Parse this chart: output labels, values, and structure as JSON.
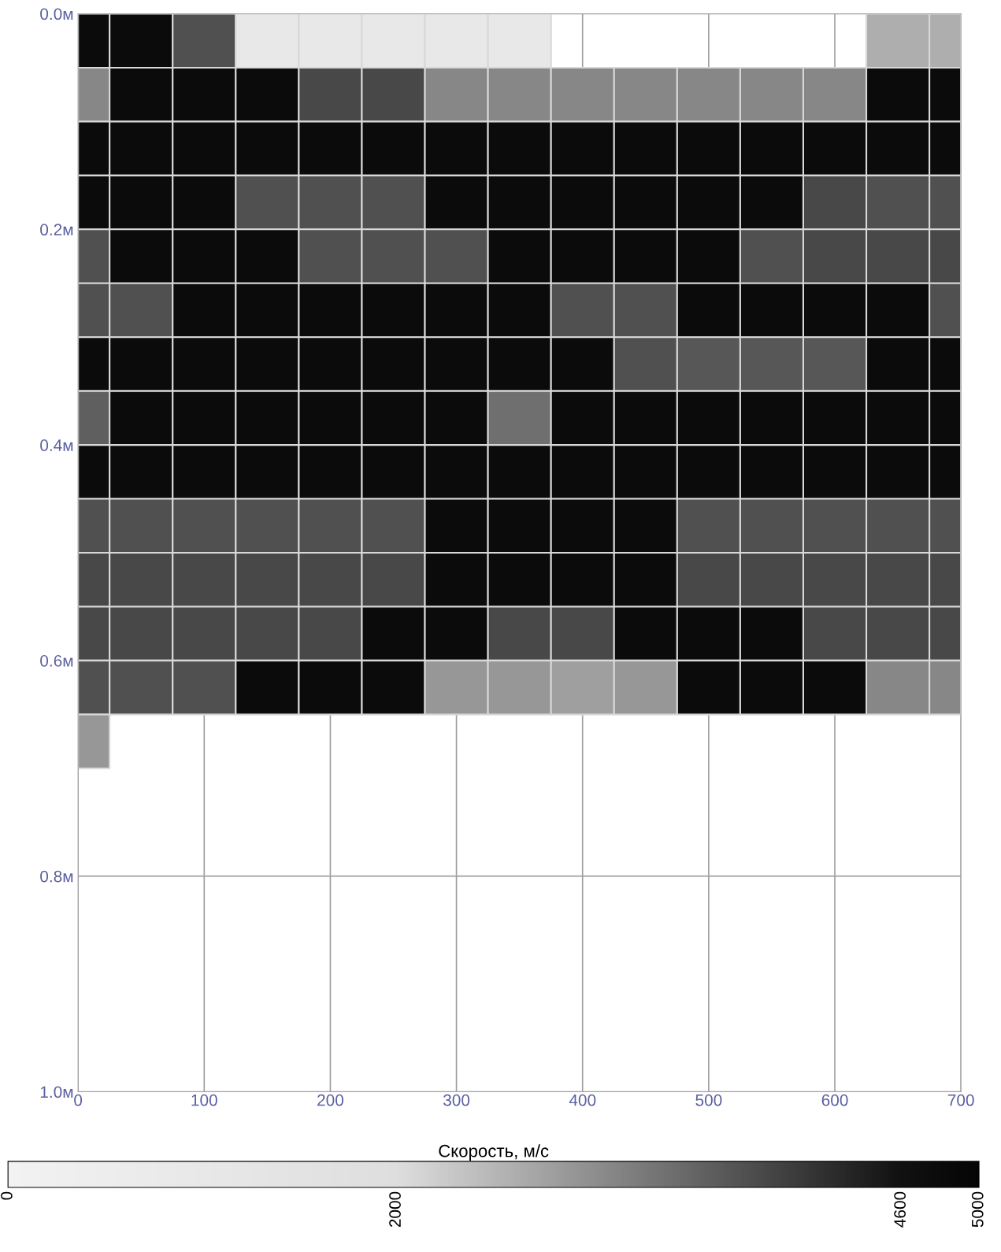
{
  "chart_data": {
    "type": "heatmap",
    "clabel": "Скорость, м/с",
    "x": [
      12.5,
      50,
      100,
      150,
      200,
      250,
      300,
      350,
      400,
      450,
      500,
      550,
      600,
      650,
      687.5
    ],
    "y": [
      0.025,
      0.075,
      0.125,
      0.175,
      0.225,
      0.275,
      0.325,
      0.375,
      0.425,
      0.475,
      0.525,
      0.575,
      0.625,
      0.675
    ],
    "cells": [
      [
        4800,
        4800,
        3800,
        1000,
        1000,
        1000,
        1000,
        1000,
        null,
        null,
        null,
        null,
        null,
        2600,
        2600
      ],
      [
        3100,
        4800,
        4800,
        4800,
        3900,
        3900,
        3100,
        3100,
        3100,
        3100,
        3100,
        3100,
        3100,
        4800,
        4800
      ],
      [
        4800,
        4800,
        4800,
        4800,
        4800,
        4800,
        4800,
        4800,
        4800,
        4800,
        4800,
        4800,
        4800,
        4800,
        4800
      ],
      [
        4800,
        4800,
        4800,
        3800,
        3800,
        3800,
        4800,
        4800,
        4800,
        4800,
        4800,
        4800,
        3900,
        3800,
        3800
      ],
      [
        3800,
        4800,
        4800,
        4800,
        3800,
        3800,
        3800,
        4800,
        4800,
        4800,
        4800,
        3800,
        3900,
        3900,
        3900
      ],
      [
        3800,
        3800,
        4800,
        4800,
        4800,
        4800,
        4800,
        4800,
        3800,
        3800,
        4800,
        4800,
        4800,
        4800,
        3800
      ],
      [
        4800,
        4800,
        4800,
        4800,
        4800,
        4800,
        4800,
        4800,
        4800,
        3800,
        3700,
        3700,
        3700,
        4800,
        4800
      ],
      [
        3600,
        4800,
        4800,
        4800,
        4800,
        4800,
        4800,
        3400,
        4800,
        4800,
        4800,
        4800,
        4800,
        4800,
        4800
      ],
      [
        4800,
        4800,
        4800,
        4800,
        4800,
        4800,
        4800,
        4800,
        4800,
        4800,
        4800,
        4800,
        4800,
        4800,
        4800
      ],
      [
        3800,
        3800,
        3800,
        3800,
        3800,
        3800,
        4800,
        4800,
        4800,
        4800,
        3800,
        3800,
        3800,
        3800,
        3800
      ],
      [
        3900,
        3900,
        3900,
        3900,
        3900,
        3900,
        4800,
        4800,
        4800,
        4800,
        3900,
        3900,
        3900,
        3900,
        3900
      ],
      [
        3900,
        3900,
        3900,
        3900,
        3900,
        4800,
        4800,
        3900,
        3900,
        4800,
        4800,
        4800,
        3900,
        3900,
        3900
      ],
      [
        3800,
        3800,
        3800,
        4800,
        4800,
        4800,
        2900,
        2900,
        2800,
        2900,
        4800,
        4800,
        4800,
        3100,
        3100
      ],
      [
        2900,
        null,
        null,
        null,
        null,
        null,
        null,
        null,
        null,
        null,
        null,
        null,
        null,
        null,
        null
      ]
    ],
    "clim": [
      0,
      5000
    ],
    "cticks": [
      0,
      2000,
      4600,
      5000
    ],
    "xlim": [
      0,
      700
    ],
    "xticks": [
      0,
      100,
      200,
      300,
      400,
      500,
      600,
      700
    ],
    "ylim": [
      1.0,
      0.0
    ],
    "yticks": [
      {
        "value": 0.0,
        "label": "0.0м"
      },
      {
        "value": 0.2,
        "label": "0.2м"
      },
      {
        "value": 0.4,
        "label": "0.4м"
      },
      {
        "value": 0.6,
        "label": "0.6м"
      },
      {
        "value": 0.8,
        "label": "0.8м"
      },
      {
        "value": 1.0,
        "label": "1.0м"
      }
    ],
    "grid": true
  }
}
